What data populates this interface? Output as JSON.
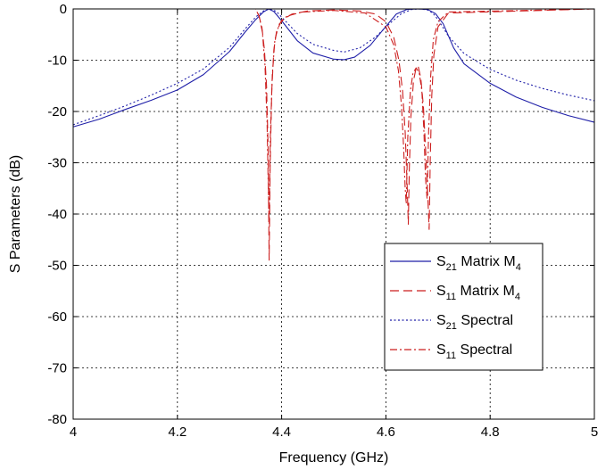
{
  "chart_data": {
    "type": "line",
    "title": "",
    "xlabel": "Frequency (GHz)",
    "ylabel": "S Parameters (dB)",
    "xlim": [
      4,
      5
    ],
    "ylim": [
      -80,
      0
    ],
    "xticks": [
      "4",
      "4.2",
      "4.4",
      "4.6",
      "4.8",
      "5"
    ],
    "yticks": [
      "0",
      "-10",
      "-20",
      "-30",
      "-40",
      "-50",
      "-60",
      "-70",
      "-80"
    ],
    "grid": true,
    "legend_position": "lower-right",
    "legend": [
      {
        "base": "S",
        "sub": "21",
        "text": " Matrix M",
        "tail_sub": "4"
      },
      {
        "base": "S",
        "sub": "11",
        "text": " Matrix M",
        "tail_sub": "4"
      },
      {
        "base": "S",
        "sub": "21",
        "text": " Spectral",
        "tail_sub": ""
      },
      {
        "base": "S",
        "sub": "11",
        "text": " Spectral",
        "tail_sub": ""
      }
    ],
    "series": [
      {
        "style": "solid",
        "color": "#1f1fa8",
        "x": [
          4.0,
          4.05,
          4.1,
          4.15,
          4.2,
          4.25,
          4.3,
          4.33,
          4.35,
          4.365,
          4.375,
          4.385,
          4.4,
          4.43,
          4.46,
          4.5,
          4.52,
          4.54,
          4.57,
          4.6,
          4.62,
          4.64,
          4.66,
          4.68,
          4.695,
          4.71,
          4.73,
          4.75,
          4.8,
          4.85,
          4.9,
          4.95,
          5.0
        ],
        "y": [
          -23,
          -21.5,
          -19.6,
          -17.8,
          -15.8,
          -12.8,
          -8.3,
          -4.5,
          -2.1,
          -0.6,
          0,
          -0.5,
          -2.3,
          -6.2,
          -8.6,
          -9.8,
          -9.9,
          -9.4,
          -7.1,
          -3.4,
          -1.0,
          -0.1,
          0,
          -0.1,
          -0.9,
          -2.9,
          -7.6,
          -10.7,
          -14.5,
          -17.2,
          -19.2,
          -20.8,
          -22.1
        ]
      },
      {
        "style": "dashed",
        "color": "#cc1f1f",
        "x": [
          4.0,
          4.35,
          4.356,
          4.362,
          4.367,
          4.371,
          4.374,
          4.376,
          4.378,
          4.381,
          4.385,
          4.39,
          4.4,
          4.42,
          4.45,
          4.5,
          4.55,
          4.58,
          4.6,
          4.615,
          4.625,
          4.632,
          4.637,
          4.641,
          4.643,
          4.645,
          4.648,
          4.653,
          4.658,
          4.662,
          4.667,
          4.672,
          4.677,
          4.681,
          4.683,
          4.685,
          4.688,
          4.692,
          4.7,
          4.72,
          5.0
        ],
        "y": [
          0,
          0,
          -1.2,
          -3.5,
          -8,
          -15,
          -27,
          -49,
          -30,
          -16,
          -8,
          -4.5,
          -2.2,
          -1.0,
          -0.4,
          -0.2,
          -0.4,
          -1.0,
          -2.5,
          -5.5,
          -10,
          -16,
          -24,
          -35,
          -42,
          -31,
          -21,
          -14,
          -11.5,
          -11.2,
          -13.5,
          -19,
          -29,
          -38,
          -43,
          -30,
          -17,
          -9,
          -3.5,
          -0.8,
          0
        ]
      },
      {
        "style": "dotted",
        "color": "#1f1fa8",
        "x": [
          4.0,
          4.05,
          4.1,
          4.15,
          4.2,
          4.25,
          4.3,
          4.33,
          4.35,
          4.365,
          4.378,
          4.39,
          4.4,
          4.43,
          4.46,
          4.5,
          4.52,
          4.55,
          4.58,
          4.61,
          4.63,
          4.65,
          4.665,
          4.68,
          4.69,
          4.7,
          4.72,
          4.75,
          4.8,
          4.85,
          4.9,
          4.95,
          5.0
        ],
        "y": [
          -22.6,
          -20.8,
          -18.9,
          -16.8,
          -14.5,
          -11.7,
          -7.5,
          -3.9,
          -1.6,
          -0.4,
          0,
          -0.5,
          -1.6,
          -4.8,
          -6.9,
          -8.1,
          -8.4,
          -7.6,
          -5.5,
          -2.6,
          -0.9,
          -0.1,
          0,
          -0.2,
          -0.8,
          -2.1,
          -5.3,
          -8.7,
          -11.8,
          -13.9,
          -15.5,
          -16.8,
          -17.9
        ]
      },
      {
        "style": "dashdot",
        "color": "#cc1f1f",
        "x": [
          4.0,
          4.35,
          4.357,
          4.363,
          4.368,
          4.372,
          4.374,
          4.376,
          4.378,
          4.382,
          4.387,
          4.395,
          4.41,
          4.44,
          4.5,
          4.56,
          4.6,
          4.615,
          4.624,
          4.63,
          4.634,
          4.637,
          4.639,
          4.642,
          4.647,
          4.652,
          4.658,
          4.664,
          4.669,
          4.673,
          4.676,
          4.679,
          4.682,
          4.686,
          4.691,
          4.7,
          4.72,
          5.0
        ],
        "y": [
          0,
          0,
          -1.5,
          -4.5,
          -11,
          -22,
          -33,
          -42,
          -26,
          -13,
          -6,
          -3,
          -1.4,
          -0.6,
          -0.3,
          -0.8,
          -3.5,
          -7,
          -12,
          -19,
          -27,
          -35,
          -38,
          -25,
          -16,
          -12.5,
          -11.5,
          -12.5,
          -16,
          -24,
          -33,
          -37,
          -24,
          -13,
          -6,
          -2.5,
          -0.6,
          0
        ]
      }
    ]
  }
}
